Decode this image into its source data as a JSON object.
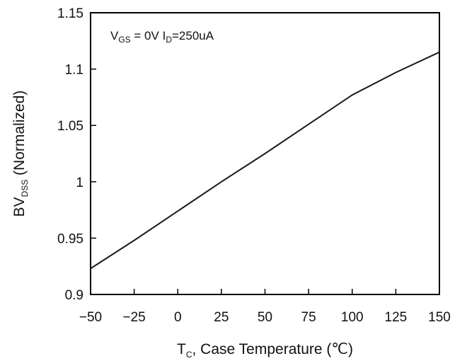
{
  "chart_data": {
    "type": "line",
    "title": "",
    "xlabel": {
      "main": "T",
      "sub": "C",
      "rest": ", Case Temperature (℃)"
    },
    "ylabel": {
      "main": "BV",
      "sub": "DSS",
      "rest": " (Normalized)"
    },
    "annotation": [
      {
        "text": "V",
        "sub": false
      },
      {
        "text": "GS",
        "sub": true
      },
      {
        "text": " = 0V I",
        "sub": false
      },
      {
        "text": "D",
        "sub": true
      },
      {
        "text": "=250uA",
        "sub": false
      }
    ],
    "xlim": [
      -50,
      150
    ],
    "ylim": [
      0.9,
      1.15
    ],
    "xticks": [
      -50,
      -25,
      0,
      25,
      50,
      75,
      100,
      125,
      150
    ],
    "yticks": [
      0.9,
      0.95,
      1,
      1.05,
      1.1,
      1.15
    ],
    "ytick_labels": [
      "0.9",
      "0.95",
      "1",
      "1.05",
      "1.1",
      "1.15"
    ],
    "grid": false,
    "series": [
      {
        "x": [
          -50,
          -25,
          0,
          25,
          50,
          75,
          100,
          125,
          150
        ],
        "y": [
          0.923,
          0.948,
          0.974,
          1.0,
          1.025,
          1.051,
          1.077,
          1.097,
          1.115
        ]
      }
    ],
    "colors": {
      "line": "#1a1a1a",
      "axis": "#000000"
    }
  }
}
